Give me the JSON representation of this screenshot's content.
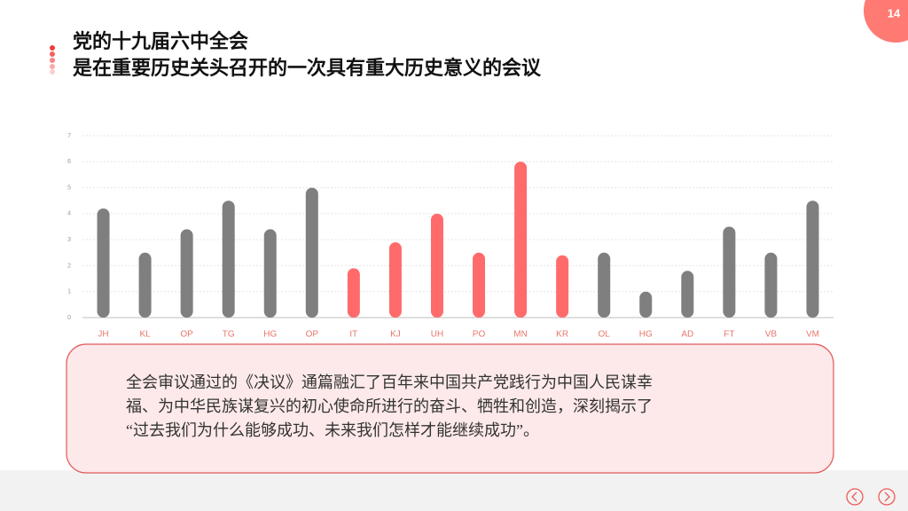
{
  "slide": {
    "page_number": "14",
    "title_lines": [
      "党的十九届六中全会",
      "是在重要历史关头召开的一次具有重大历史意义的会议"
    ],
    "body_lines": [
      "全会审议通过的《决议》通篇融汇了百年来中国共产党践行为中国人民谋幸",
      "福、为中华民族谋复兴的初心使命所进行的奋斗、牺牲和创造，深刻揭示了",
      "“过去我们为什么能够成功、未来我们怎样才能继续成功”。"
    ]
  },
  "chart_data": {
    "type": "bar",
    "categories": [
      "JH",
      "KL",
      "OP",
      "TG",
      "HG",
      "OP",
      "IT",
      "KJ",
      "UH",
      "PO",
      "MN",
      "KR",
      "OL",
      "HG",
      "AD",
      "FT",
      "VB",
      "VM"
    ],
    "values": [
      4.2,
      2.5,
      3.4,
      4.5,
      3.4,
      5.0,
      1.9,
      2.9,
      4.0,
      2.5,
      6.0,
      2.4,
      2.5,
      1.0,
      1.8,
      3.5,
      2.5,
      4.5
    ],
    "colors": [
      "#7f7f7f",
      "#7f7f7f",
      "#7f7f7f",
      "#7f7f7f",
      "#7f7f7f",
      "#7f7f7f",
      "#ff6b6b",
      "#ff6b6b",
      "#ff6b6b",
      "#ff6b6b",
      "#ff6b6b",
      "#ff6b6b",
      "#7f7f7f",
      "#7f7f7f",
      "#7f7f7f",
      "#7f7f7f",
      "#7f7f7f",
      "#7f7f7f"
    ],
    "ylim": [
      0,
      7
    ],
    "yticks": [
      0,
      1,
      2,
      3,
      4,
      5,
      6,
      7
    ],
    "grid": true
  }
}
